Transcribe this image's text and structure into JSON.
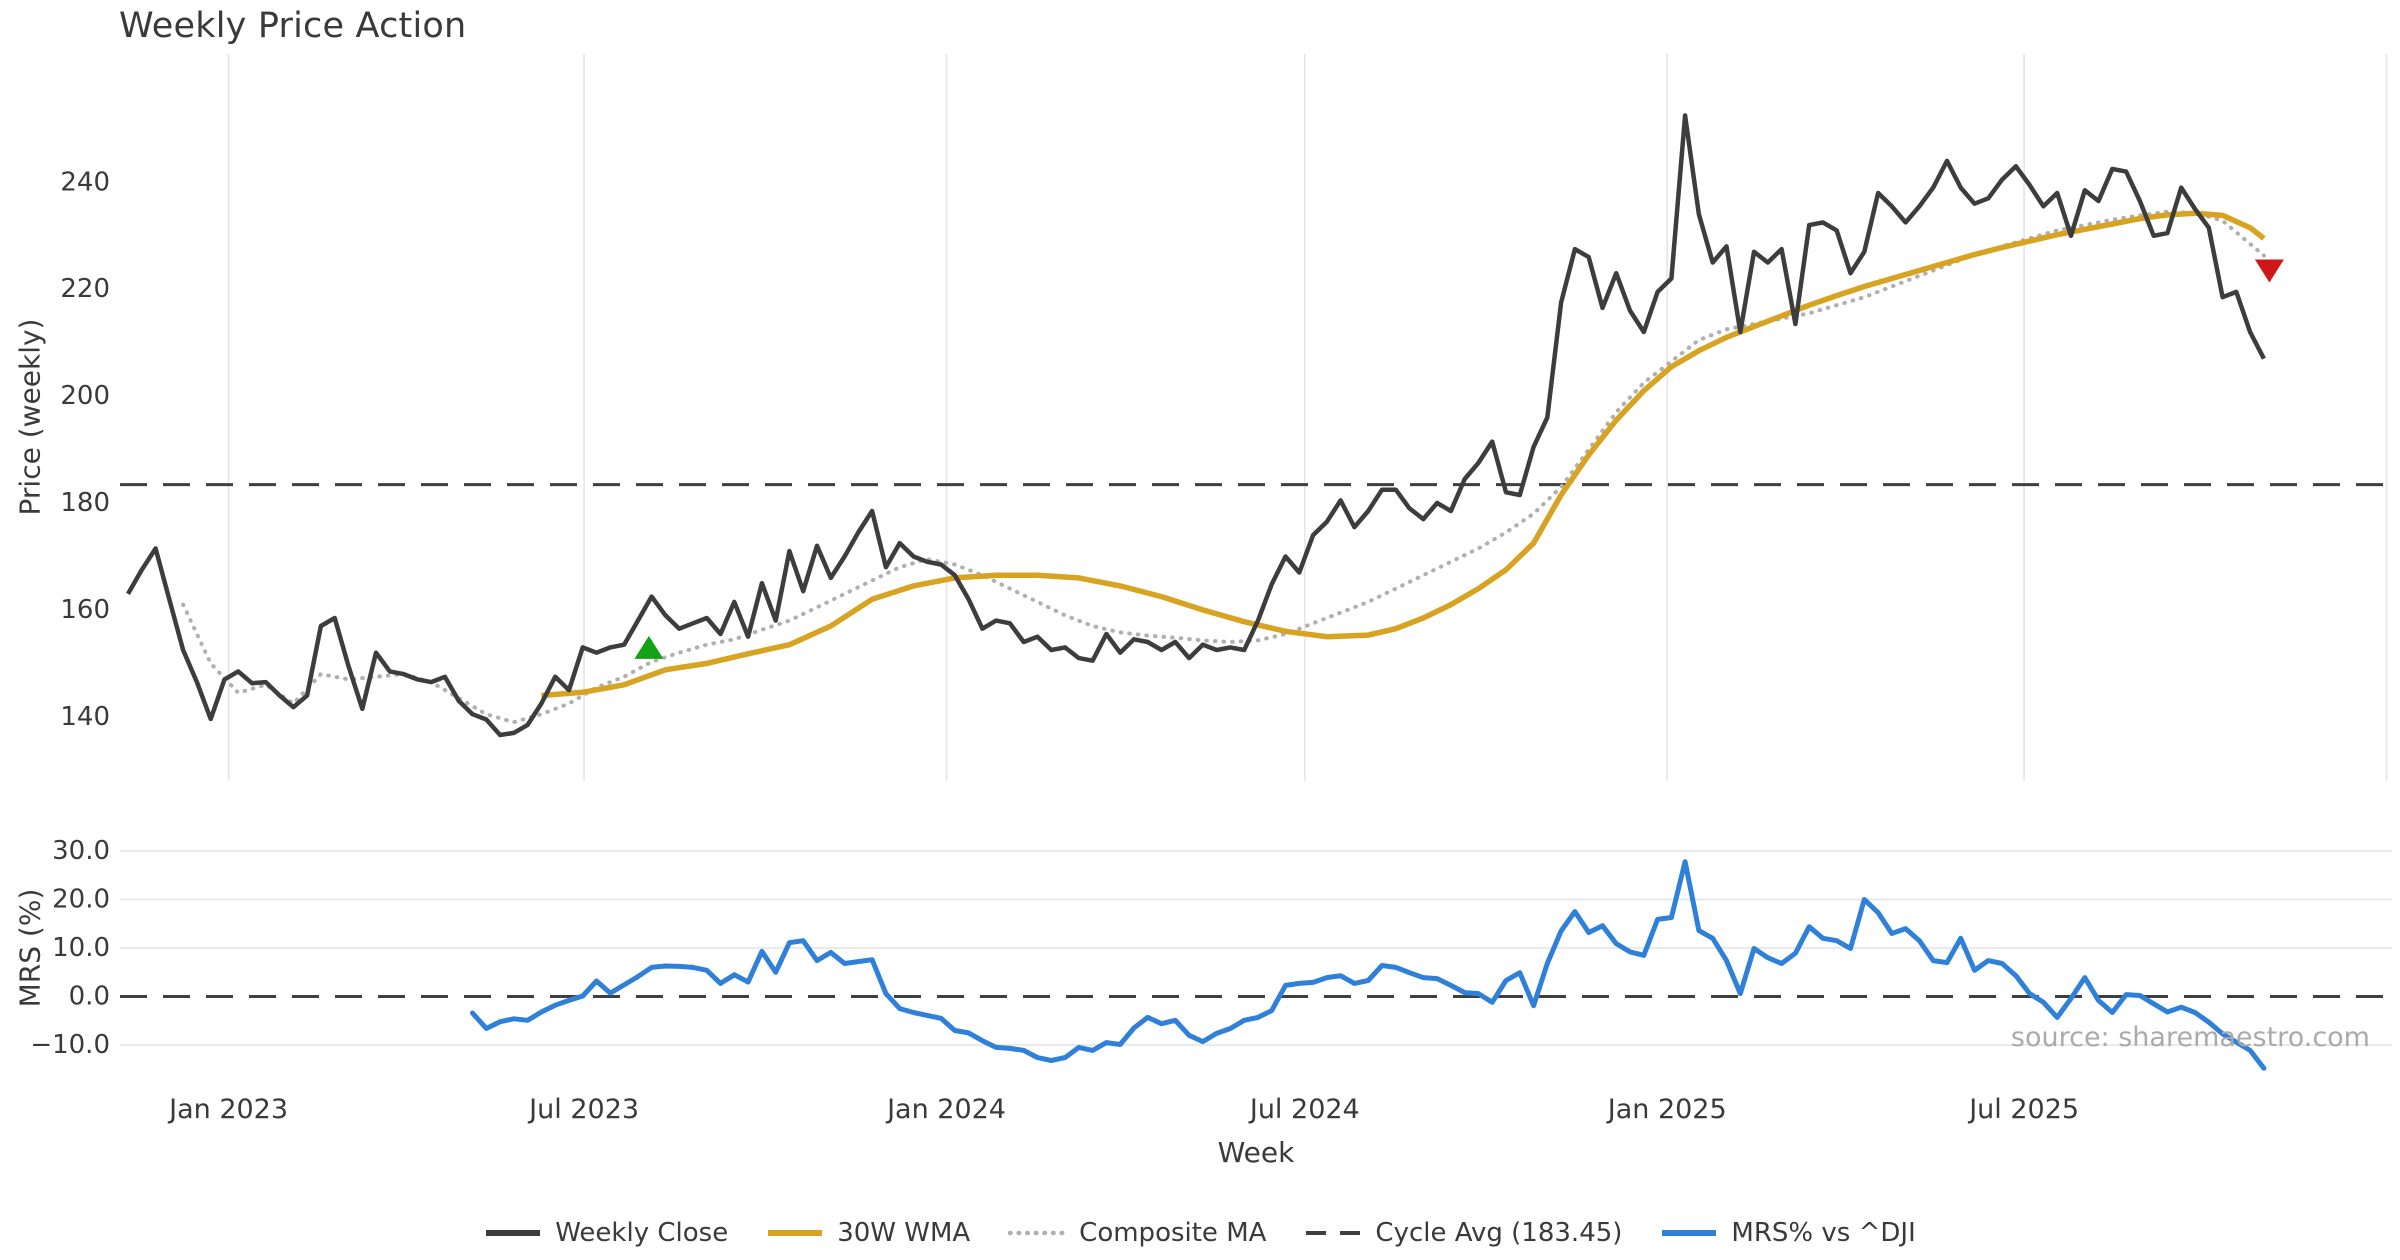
{
  "title": "Weekly Price Action",
  "watermark": "source: sharemaestro.com",
  "chart_data": {
    "type": "line",
    "title": "Weekly Price Action",
    "xlabel": "Week",
    "x_unit": "weekly closes, week 0 = mid-Nov 2022, one point per week",
    "x_ticks": [
      {
        "week": 7.3,
        "label": "Jan 2023"
      },
      {
        "week": 33.1,
        "label": "Jul 2023"
      },
      {
        "week": 59.4,
        "label": "Jan 2024"
      },
      {
        "week": 85.4,
        "label": "Jul 2024"
      },
      {
        "week": 111.7,
        "label": "Jan 2025"
      },
      {
        "week": 137.6,
        "label": "Jul 2025"
      },
      {
        "week": 163.9,
        "label": ""
      }
    ],
    "top_panel": {
      "ylabel": "Price (weekly)",
      "ylim": [
        128,
        264
      ],
      "yticks": [
        {
          "v": 240,
          "label": "240"
        },
        {
          "v": 220,
          "label": "220"
        },
        {
          "v": 200,
          "label": "200"
        },
        {
          "v": 180,
          "label": "180"
        },
        {
          "v": 160,
          "label": "160"
        },
        {
          "v": 140,
          "label": "140"
        }
      ],
      "grid": "vertical",
      "cycle_avg": {
        "value": 183.45,
        "label": "Cycle Avg (183.45)",
        "color": "#3f3f3f",
        "style": "dashed"
      },
      "series": [
        {
          "name": "Composite MA",
          "color": "#b0b0b0",
          "style": "dotted",
          "width": 4,
          "weeks": [
            4,
            6,
            8,
            10,
            12,
            14,
            16,
            18,
            20,
            22,
            24,
            26,
            28,
            30,
            32,
            34,
            36,
            38,
            40,
            42,
            44,
            46,
            48,
            50,
            52,
            54,
            56,
            58,
            60,
            62,
            64,
            66,
            68,
            70,
            72,
            74,
            76,
            78,
            80,
            82,
            84,
            86,
            88,
            90,
            92,
            94,
            96,
            98,
            100,
            102,
            104,
            106,
            108,
            110,
            112,
            114,
            116,
            118,
            120,
            122,
            124,
            126,
            128,
            130,
            132,
            134,
            136,
            138,
            140,
            142,
            144,
            146,
            148,
            150,
            152,
            155
          ],
          "values": [
            161,
            150,
            144.5,
            146,
            142.5,
            148,
            147,
            147.5,
            148,
            146.5,
            143.5,
            140.5,
            139,
            140.5,
            142.5,
            145.5,
            147.5,
            150.3,
            152,
            153.5,
            154.5,
            156.3,
            158,
            160.5,
            163,
            165.5,
            168,
            169.5,
            168.5,
            166.5,
            164,
            161.5,
            159,
            157,
            155.8,
            155.2,
            154.8,
            154.3,
            154,
            154.3,
            155.5,
            157.5,
            159.5,
            161.5,
            164,
            166.5,
            169,
            171.5,
            174.5,
            178,
            183,
            190,
            197,
            202.5,
            206.5,
            210.5,
            212.5,
            213.5,
            214.5,
            215.5,
            217,
            218.5,
            220.5,
            222.5,
            224.5,
            226.5,
            228,
            229.5,
            231,
            232,
            233,
            233.8,
            234.5,
            234.3,
            232.8,
            226.3
          ]
        },
        {
          "name": "30W WMA",
          "color": "#d7a321",
          "style": "solid",
          "width": 5.5,
          "weeks": [
            30,
            33,
            36,
            39,
            42,
            45,
            48,
            51,
            54,
            57,
            60,
            63,
            66,
            69,
            72,
            75,
            78,
            81,
            84,
            87,
            90,
            92,
            94,
            96,
            98,
            100,
            102,
            104,
            106,
            108,
            110,
            112,
            114,
            116,
            118,
            120,
            122,
            124,
            126,
            128,
            130,
            132,
            134,
            136,
            138,
            140,
            142,
            144,
            146,
            148,
            150,
            152,
            154,
            155
          ],
          "values": [
            144,
            144.6,
            146,
            148.8,
            150,
            151.8,
            153.5,
            157,
            162,
            164.5,
            166,
            166.5,
            166.5,
            166,
            164.5,
            162.5,
            160,
            157.8,
            156,
            155,
            155.3,
            156.5,
            158.5,
            161,
            164,
            167.5,
            172.5,
            181.5,
            189,
            195.5,
            201,
            205.5,
            208.5,
            211,
            213,
            215,
            217,
            218.8,
            220.5,
            222,
            223.5,
            225,
            226.5,
            227.8,
            229,
            230.2,
            231.2,
            232.2,
            233.2,
            233.9,
            234.2,
            233.8,
            231.5,
            229.5
          ]
        },
        {
          "name": "Weekly Close",
          "color": "#3d3d3d",
          "style": "solid",
          "width": 4.5,
          "week_start": 0,
          "values": [
            163,
            167.5,
            171.5,
            162,
            152.5,
            146.5,
            139.6,
            147,
            148.5,
            146.3,
            146.5,
            144,
            141.8,
            144,
            157,
            158.5,
            149.5,
            141.5,
            152,
            148.5,
            148,
            147,
            146.5,
            147.5,
            143,
            140.5,
            139.5,
            136.6,
            137,
            138.5,
            142.5,
            147.5,
            145,
            153,
            152,
            153,
            153.5,
            158,
            162.5,
            159,
            156.5,
            157.5,
            158.5,
            155.5,
            161.5,
            155,
            165,
            158,
            171,
            163.5,
            172,
            166,
            170,
            174.5,
            178.5,
            168,
            172.5,
            170,
            169,
            168.5,
            166.5,
            162,
            156.5,
            158,
            157.5,
            154,
            155,
            152.5,
            153,
            151,
            150.5,
            155.5,
            152,
            154.5,
            154,
            152.5,
            154,
            151,
            153.5,
            152.5,
            153,
            152.5,
            158,
            164.8,
            170,
            167,
            174,
            176.5,
            180.5,
            175.5,
            178.5,
            182.5,
            182.5,
            179,
            177,
            180,
            178.5,
            184.5,
            187.5,
            191.5,
            182,
            181.5,
            190.5,
            196,
            217.5,
            227.5,
            226,
            216.5,
            223,
            216,
            212,
            219.5,
            222,
            252.5,
            234,
            225,
            228,
            212,
            227,
            225,
            227.5,
            213.5,
            232,
            232.5,
            231,
            223,
            227,
            238,
            235.5,
            232.5,
            235.5,
            239,
            244,
            239,
            236,
            237,
            240.5,
            243,
            239.5,
            235.5,
            238,
            230,
            238.5,
            236.5,
            242.5,
            242,
            236.5,
            230,
            230.5,
            239,
            235,
            231.5,
            218.5,
            219.5,
            212,
            207
          ]
        }
      ],
      "markers": [
        {
          "name": "buy-signal",
          "shape": "triangle-up",
          "week": 37.8,
          "price": 152.8,
          "color": "#15a115"
        },
        {
          "name": "sell-signal",
          "shape": "triangle-down",
          "week": 155.4,
          "price": 223.6,
          "color": "#cf1717"
        }
      ]
    },
    "bottom_panel": {
      "ylabel": "MRS (%)",
      "ylim": [
        -16.8,
        33.3
      ],
      "yticks": [
        {
          "v": 30,
          "label": "30.0"
        },
        {
          "v": 20,
          "label": "20.0"
        },
        {
          "v": 10,
          "label": "10.0"
        },
        {
          "v": 0,
          "label": "0.0"
        },
        {
          "v": -10,
          "label": "−10.0"
        }
      ],
      "grid": "horizontal",
      "zero_line": {
        "value": 0,
        "color": "#3f3f3f",
        "style": "dashed"
      },
      "series": [
        {
          "name": "MRS% vs ^DJI",
          "color": "#2f80d9",
          "style": "solid",
          "width": 5,
          "week_start": 25,
          "values": [
            -3.4,
            -6.6,
            -5.2,
            -4.6,
            -4.9,
            -3.2,
            -1.8,
            -0.8,
            0.1,
            3.2,
            0.7,
            2.4,
            4.1,
            6.0,
            6.3,
            6.2,
            6.0,
            5.4,
            2.7,
            4.5,
            3.0,
            9.3,
            5.0,
            11.1,
            11.5,
            7.4,
            9.1,
            6.8,
            7.2,
            7.6,
            0.6,
            -2.5,
            -3.3,
            -3.9,
            -4.5,
            -7.0,
            -7.5,
            -9.1,
            -10.5,
            -10.7,
            -11.1,
            -12.6,
            -13.2,
            -12.6,
            -10.5,
            -11.1,
            -9.5,
            -9.9,
            -6.5,
            -4.3,
            -5.6,
            -4.9,
            -8.0,
            -9.3,
            -7.6,
            -6.6,
            -4.9,
            -4.3,
            -2.9,
            2.3,
            2.7,
            2.9,
            3.9,
            4.3,
            2.7,
            3.3,
            6.4,
            6.0,
            4.9,
            3.9,
            3.7,
            2.3,
            0.8,
            0.6,
            -1.2,
            3.3,
            4.9,
            -1.9,
            6.8,
            13.5,
            17.5,
            13.2,
            14.6,
            10.9,
            9.2,
            8.5,
            15.9,
            16.3,
            27.8,
            13.6,
            12.0,
            7.4,
            0.6,
            9.9,
            8.0,
            6.8,
            8.9,
            14.4,
            12.0,
            11.5,
            9.9,
            20.0,
            17.3,
            13.0,
            14.0,
            11.5,
            7.4,
            7.0,
            12.0,
            5.4,
            7.4,
            6.8,
            4.3,
            0.6,
            -1.2,
            -4.3,
            -0.4,
            3.9,
            -0.8,
            -3.3,
            0.4,
            0.2,
            -1.5,
            -3.2,
            -2.2,
            -3.3,
            -5.3,
            -7.7,
            -9.4,
            -11.1,
            -14.8
          ]
        }
      ]
    },
    "legend": [
      {
        "label": "Weekly Close",
        "color": "#3d3d3d",
        "style": "solid"
      },
      {
        "label": "30W WMA",
        "color": "#d7a321",
        "style": "solid"
      },
      {
        "label": "Composite MA",
        "color": "#b0b0b0",
        "style": "dotted"
      },
      {
        "label": "Cycle Avg (183.45)",
        "color": "#3f3f3f",
        "style": "dashed"
      },
      {
        "label": "MRS% vs ^DJI",
        "color": "#2f80d9",
        "style": "solid"
      }
    ],
    "grid_color": "#e7e7e7",
    "tick_color": "#3a3a3a"
  }
}
